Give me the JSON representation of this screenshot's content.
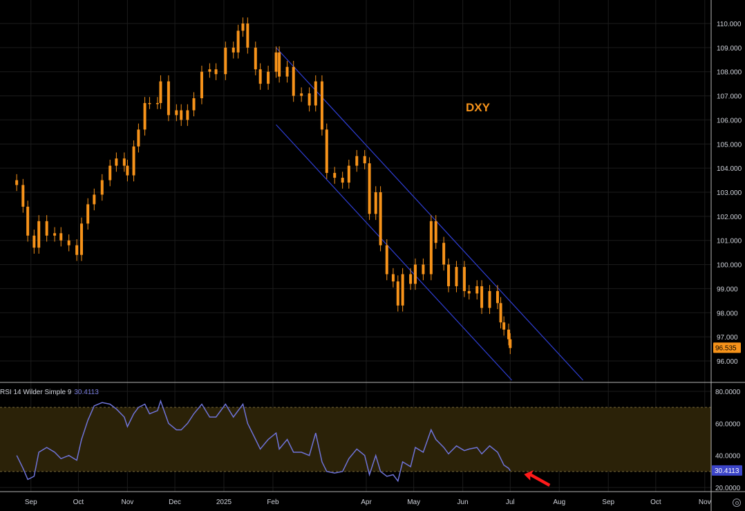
{
  "symbol": "DXY",
  "indicator": {
    "name": "RSI 14 Wilder Simple 9",
    "value": "30.4113"
  },
  "price_tag": "96.535",
  "rsi_tag": "30.4113",
  "colors": {
    "background": "#000000",
    "candle": "#f7931a",
    "channel": "#2f3fd6",
    "rsi_line": "#6f74d9",
    "rsi_band": "#2b2208",
    "price_tag_bg": "#f7931a",
    "rsi_tag_bg": "#3c45c8",
    "arrow": "#ff1a1a",
    "grid": "#1c1c1c"
  },
  "chart_data": [
    {
      "type": "candlestick",
      "title": "DXY",
      "yticks": [
        "110.000",
        "109.000",
        "108.000",
        "107.000",
        "106.000",
        "105.000",
        "104.000",
        "103.000",
        "102.000",
        "101.000",
        "100.000",
        "99.000",
        "98.000",
        "97.000",
        "96.000"
      ],
      "ylim": [
        95.15,
        110.25
      ],
      "x_axis_labels": [
        "Sep",
        "Oct",
        "Nov",
        "Dec",
        "2025",
        "Feb",
        "Apr",
        "May",
        "Jun",
        "Jul",
        "Aug",
        "Sep",
        "Oct",
        "Nov"
      ],
      "close_series": [
        {
          "x": "2024-08-23",
          "y": 103.3
        },
        {
          "x": "2024-08-27",
          "y": 102.4
        },
        {
          "x": "2024-08-30",
          "y": 101.2
        },
        {
          "x": "2024-09-03",
          "y": 100.7
        },
        {
          "x": "2024-09-06",
          "y": 101.8
        },
        {
          "x": "2024-09-11",
          "y": 101.2
        },
        {
          "x": "2024-09-16",
          "y": 101.3
        },
        {
          "x": "2024-09-20",
          "y": 101.0
        },
        {
          "x": "2024-09-25",
          "y": 100.8
        },
        {
          "x": "2024-09-30",
          "y": 100.4
        },
        {
          "x": "2024-10-03",
          "y": 101.7
        },
        {
          "x": "2024-10-07",
          "y": 102.5
        },
        {
          "x": "2024-10-11",
          "y": 102.9
        },
        {
          "x": "2024-10-16",
          "y": 103.5
        },
        {
          "x": "2024-10-21",
          "y": 104.1
        },
        {
          "x": "2024-10-25",
          "y": 104.4
        },
        {
          "x": "2024-10-30",
          "y": 104.1
        },
        {
          "x": "2024-11-01",
          "y": 103.7
        },
        {
          "x": "2024-11-05",
          "y": 104.9
        },
        {
          "x": "2024-11-08",
          "y": 105.6
        },
        {
          "x": "2024-11-12",
          "y": 106.7
        },
        {
          "x": "2024-11-15",
          "y": 106.7
        },
        {
          "x": "2024-11-20",
          "y": 106.7
        },
        {
          "x": "2024-11-22",
          "y": 107.6
        },
        {
          "x": "2024-11-27",
          "y": 106.2
        },
        {
          "x": "2024-12-02",
          "y": 106.4
        },
        {
          "x": "2024-12-05",
          "y": 106.0
        },
        {
          "x": "2024-12-09",
          "y": 106.4
        },
        {
          "x": "2024-12-13",
          "y": 106.9
        },
        {
          "x": "2024-12-18",
          "y": 108.0
        },
        {
          "x": "2024-12-23",
          "y": 108.1
        },
        {
          "x": "2024-12-27",
          "y": 107.9
        },
        {
          "x": "2025-01-02",
          "y": 109.0
        },
        {
          "x": "2025-01-07",
          "y": 108.8
        },
        {
          "x": "2025-01-10",
          "y": 109.7
        },
        {
          "x": "2025-01-13",
          "y": 110.0
        },
        {
          "x": "2025-01-16",
          "y": 109.0
        },
        {
          "x": "2025-01-21",
          "y": 108.1
        },
        {
          "x": "2025-01-24",
          "y": 107.5
        },
        {
          "x": "2025-01-29",
          "y": 108.0
        },
        {
          "x": "2025-02-03",
          "y": 108.8
        },
        {
          "x": "2025-02-05",
          "y": 107.8
        },
        {
          "x": "2025-02-10",
          "y": 108.2
        },
        {
          "x": "2025-02-14",
          "y": 107.0
        },
        {
          "x": "2025-02-19",
          "y": 107.1
        },
        {
          "x": "2025-02-24",
          "y": 106.6
        },
        {
          "x": "2025-02-28",
          "y": 107.6
        },
        {
          "x": "2025-03-04",
          "y": 105.6
        },
        {
          "x": "2025-03-07",
          "y": 103.8
        },
        {
          "x": "2025-03-12",
          "y": 103.6
        },
        {
          "x": "2025-03-17",
          "y": 103.4
        },
        {
          "x": "2025-03-21",
          "y": 104.1
        },
        {
          "x": "2025-03-26",
          "y": 104.5
        },
        {
          "x": "2025-03-31",
          "y": 104.2
        },
        {
          "x": "2025-04-03",
          "y": 102.1
        },
        {
          "x": "2025-04-07",
          "y": 103.0
        },
        {
          "x": "2025-04-10",
          "y": 100.8
        },
        {
          "x": "2025-04-14",
          "y": 99.6
        },
        {
          "x": "2025-04-18",
          "y": 99.3
        },
        {
          "x": "2025-04-21",
          "y": 98.3
        },
        {
          "x": "2025-04-24",
          "y": 99.6
        },
        {
          "x": "2025-04-29",
          "y": 99.2
        },
        {
          "x": "2025-05-02",
          "y": 100.0
        },
        {
          "x": "2025-05-07",
          "y": 99.6
        },
        {
          "x": "2025-05-12",
          "y": 101.8
        },
        {
          "x": "2025-05-15",
          "y": 100.9
        },
        {
          "x": "2025-05-20",
          "y": 100.0
        },
        {
          "x": "2025-05-23",
          "y": 99.1
        },
        {
          "x": "2025-05-28",
          "y": 99.9
        },
        {
          "x": "2025-06-02",
          "y": 98.9
        },
        {
          "x": "2025-06-05",
          "y": 98.8
        },
        {
          "x": "2025-06-10",
          "y": 99.1
        },
        {
          "x": "2025-06-13",
          "y": 98.2
        },
        {
          "x": "2025-06-18",
          "y": 98.9
        },
        {
          "x": "2025-06-23",
          "y": 98.4
        },
        {
          "x": "2025-06-25",
          "y": 97.6
        },
        {
          "x": "2025-06-27",
          "y": 97.3
        },
        {
          "x": "2025-06-30",
          "y": 96.9
        },
        {
          "x": "2025-07-01",
          "y": 96.535
        }
      ],
      "channel_lines": [
        {
          "from": {
            "x": "2025-02-03",
            "y": 109.0
          },
          "to": {
            "x": "2025-08-16",
            "y": 95.2
          }
        },
        {
          "from": {
            "x": "2025-02-03",
            "y": 105.8
          },
          "to": {
            "x": "2025-07-02",
            "y": 95.2
          }
        }
      ],
      "last_price": 96.535
    },
    {
      "type": "line",
      "title": "RSI 14 Wilder Simple 9",
      "yticks": [
        "80.0000",
        "60.0000",
        "40.0000",
        "20.0000"
      ],
      "ylim": [
        17,
        81
      ],
      "bands": [
        30,
        70
      ],
      "series": [
        {
          "name": "RSI 14 Wilder Simple 9",
          "values": [
            {
              "x": "2024-08-23",
              "y": 40
            },
            {
              "x": "2024-08-27",
              "y": 32
            },
            {
              "x": "2024-08-30",
              "y": 25
            },
            {
              "x": "2024-09-03",
              "y": 27
            },
            {
              "x": "2024-09-06",
              "y": 42
            },
            {
              "x": "2024-09-11",
              "y": 45
            },
            {
              "x": "2024-09-16",
              "y": 42
            },
            {
              "x": "2024-09-20",
              "y": 38
            },
            {
              "x": "2024-09-25",
              "y": 40
            },
            {
              "x": "2024-09-30",
              "y": 37
            },
            {
              "x": "2024-10-03",
              "y": 50
            },
            {
              "x": "2024-10-07",
              "y": 62
            },
            {
              "x": "2024-10-11",
              "y": 71
            },
            {
              "x": "2024-10-16",
              "y": 73
            },
            {
              "x": "2024-10-21",
              "y": 72
            },
            {
              "x": "2024-10-25",
              "y": 69
            },
            {
              "x": "2024-10-30",
              "y": 64
            },
            {
              "x": "2024-11-01",
              "y": 58
            },
            {
              "x": "2024-11-05",
              "y": 66
            },
            {
              "x": "2024-11-08",
              "y": 70
            },
            {
              "x": "2024-11-12",
              "y": 72
            },
            {
              "x": "2024-11-15",
              "y": 66
            },
            {
              "x": "2024-11-20",
              "y": 68
            },
            {
              "x": "2024-11-22",
              "y": 74
            },
            {
              "x": "2024-11-27",
              "y": 60
            },
            {
              "x": "2024-12-02",
              "y": 56
            },
            {
              "x": "2024-12-05",
              "y": 56
            },
            {
              "x": "2024-12-09",
              "y": 60
            },
            {
              "x": "2024-12-13",
              "y": 66
            },
            {
              "x": "2024-12-18",
              "y": 72
            },
            {
              "x": "2024-12-23",
              "y": 64
            },
            {
              "x": "2024-12-27",
              "y": 64
            },
            {
              "x": "2025-01-02",
              "y": 72
            },
            {
              "x": "2025-01-07",
              "y": 64
            },
            {
              "x": "2025-01-10",
              "y": 68
            },
            {
              "x": "2025-01-13",
              "y": 72
            },
            {
              "x": "2025-01-16",
              "y": 60
            },
            {
              "x": "2025-01-21",
              "y": 50
            },
            {
              "x": "2025-01-24",
              "y": 44
            },
            {
              "x": "2025-01-29",
              "y": 50
            },
            {
              "x": "2025-02-03",
              "y": 54
            },
            {
              "x": "2025-02-05",
              "y": 44
            },
            {
              "x": "2025-02-10",
              "y": 50
            },
            {
              "x": "2025-02-14",
              "y": 42
            },
            {
              "x": "2025-02-19",
              "y": 42
            },
            {
              "x": "2025-02-24",
              "y": 40
            },
            {
              "x": "2025-02-28",
              "y": 54
            },
            {
              "x": "2025-03-04",
              "y": 36
            },
            {
              "x": "2025-03-07",
              "y": 30
            },
            {
              "x": "2025-03-12",
              "y": 29
            },
            {
              "x": "2025-03-17",
              "y": 30
            },
            {
              "x": "2025-03-21",
              "y": 38
            },
            {
              "x": "2025-03-26",
              "y": 44
            },
            {
              "x": "2025-03-31",
              "y": 40
            },
            {
              "x": "2025-04-03",
              "y": 28
            },
            {
              "x": "2025-04-07",
              "y": 40
            },
            {
              "x": "2025-04-10",
              "y": 30
            },
            {
              "x": "2025-04-14",
              "y": 27
            },
            {
              "x": "2025-04-18",
              "y": 28
            },
            {
              "x": "2025-04-21",
              "y": 24
            },
            {
              "x": "2025-04-24",
              "y": 36
            },
            {
              "x": "2025-04-29",
              "y": 33
            },
            {
              "x": "2025-05-02",
              "y": 45
            },
            {
              "x": "2025-05-07",
              "y": 42
            },
            {
              "x": "2025-05-12",
              "y": 56
            },
            {
              "x": "2025-05-15",
              "y": 50
            },
            {
              "x": "2025-05-20",
              "y": 45
            },
            {
              "x": "2025-05-23",
              "y": 41
            },
            {
              "x": "2025-05-28",
              "y": 46
            },
            {
              "x": "2025-06-02",
              "y": 43
            },
            {
              "x": "2025-06-05",
              "y": 44
            },
            {
              "x": "2025-06-10",
              "y": 45
            },
            {
              "x": "2025-06-13",
              "y": 41
            },
            {
              "x": "2025-06-18",
              "y": 46
            },
            {
              "x": "2025-06-23",
              "y": 42
            },
            {
              "x": "2025-06-25",
              "y": 38
            },
            {
              "x": "2025-06-27",
              "y": 34
            },
            {
              "x": "2025-06-30",
              "y": 32
            },
            {
              "x": "2025-07-01",
              "y": 30.4113
            }
          ]
        }
      ],
      "last_value": 30.4113
    }
  ]
}
